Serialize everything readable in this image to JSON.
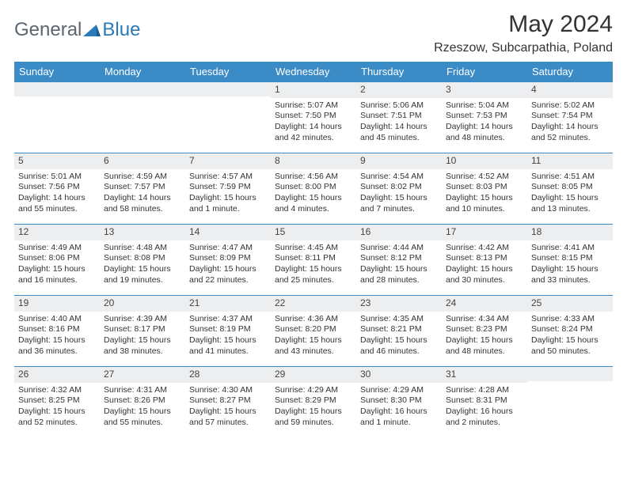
{
  "logo": {
    "part1": "General",
    "part2": "Blue"
  },
  "title": "May 2024",
  "location": "Rzeszow, Subcarpathia, Poland",
  "colors": {
    "header_bg": "#3b8bc7",
    "header_text": "#ffffff",
    "daynum_bg": "#eceeef",
    "row_border": "#3b8bc7",
    "logo_gray": "#5b6670",
    "logo_blue": "#2a7ab9",
    "text": "#333333",
    "background": "#ffffff"
  },
  "fonts": {
    "title_size": 30,
    "location_size": 16,
    "header_cell_size": 13,
    "daynum_size": 12,
    "body_size": 10.5
  },
  "day_headers": [
    "Sunday",
    "Monday",
    "Tuesday",
    "Wednesday",
    "Thursday",
    "Friday",
    "Saturday"
  ],
  "weeks": [
    [
      {
        "n": "",
        "sr": "",
        "ss": "",
        "dl": ""
      },
      {
        "n": "",
        "sr": "",
        "ss": "",
        "dl": ""
      },
      {
        "n": "",
        "sr": "",
        "ss": "",
        "dl": ""
      },
      {
        "n": "1",
        "sr": "Sunrise: 5:07 AM",
        "ss": "Sunset: 7:50 PM",
        "dl": "Daylight: 14 hours and 42 minutes."
      },
      {
        "n": "2",
        "sr": "Sunrise: 5:06 AM",
        "ss": "Sunset: 7:51 PM",
        "dl": "Daylight: 14 hours and 45 minutes."
      },
      {
        "n": "3",
        "sr": "Sunrise: 5:04 AM",
        "ss": "Sunset: 7:53 PM",
        "dl": "Daylight: 14 hours and 48 minutes."
      },
      {
        "n": "4",
        "sr": "Sunrise: 5:02 AM",
        "ss": "Sunset: 7:54 PM",
        "dl": "Daylight: 14 hours and 52 minutes."
      }
    ],
    [
      {
        "n": "5",
        "sr": "Sunrise: 5:01 AM",
        "ss": "Sunset: 7:56 PM",
        "dl": "Daylight: 14 hours and 55 minutes."
      },
      {
        "n": "6",
        "sr": "Sunrise: 4:59 AM",
        "ss": "Sunset: 7:57 PM",
        "dl": "Daylight: 14 hours and 58 minutes."
      },
      {
        "n": "7",
        "sr": "Sunrise: 4:57 AM",
        "ss": "Sunset: 7:59 PM",
        "dl": "Daylight: 15 hours and 1 minute."
      },
      {
        "n": "8",
        "sr": "Sunrise: 4:56 AM",
        "ss": "Sunset: 8:00 PM",
        "dl": "Daylight: 15 hours and 4 minutes."
      },
      {
        "n": "9",
        "sr": "Sunrise: 4:54 AM",
        "ss": "Sunset: 8:02 PM",
        "dl": "Daylight: 15 hours and 7 minutes."
      },
      {
        "n": "10",
        "sr": "Sunrise: 4:52 AM",
        "ss": "Sunset: 8:03 PM",
        "dl": "Daylight: 15 hours and 10 minutes."
      },
      {
        "n": "11",
        "sr": "Sunrise: 4:51 AM",
        "ss": "Sunset: 8:05 PM",
        "dl": "Daylight: 15 hours and 13 minutes."
      }
    ],
    [
      {
        "n": "12",
        "sr": "Sunrise: 4:49 AM",
        "ss": "Sunset: 8:06 PM",
        "dl": "Daylight: 15 hours and 16 minutes."
      },
      {
        "n": "13",
        "sr": "Sunrise: 4:48 AM",
        "ss": "Sunset: 8:08 PM",
        "dl": "Daylight: 15 hours and 19 minutes."
      },
      {
        "n": "14",
        "sr": "Sunrise: 4:47 AM",
        "ss": "Sunset: 8:09 PM",
        "dl": "Daylight: 15 hours and 22 minutes."
      },
      {
        "n": "15",
        "sr": "Sunrise: 4:45 AM",
        "ss": "Sunset: 8:11 PM",
        "dl": "Daylight: 15 hours and 25 minutes."
      },
      {
        "n": "16",
        "sr": "Sunrise: 4:44 AM",
        "ss": "Sunset: 8:12 PM",
        "dl": "Daylight: 15 hours and 28 minutes."
      },
      {
        "n": "17",
        "sr": "Sunrise: 4:42 AM",
        "ss": "Sunset: 8:13 PM",
        "dl": "Daylight: 15 hours and 30 minutes."
      },
      {
        "n": "18",
        "sr": "Sunrise: 4:41 AM",
        "ss": "Sunset: 8:15 PM",
        "dl": "Daylight: 15 hours and 33 minutes."
      }
    ],
    [
      {
        "n": "19",
        "sr": "Sunrise: 4:40 AM",
        "ss": "Sunset: 8:16 PM",
        "dl": "Daylight: 15 hours and 36 minutes."
      },
      {
        "n": "20",
        "sr": "Sunrise: 4:39 AM",
        "ss": "Sunset: 8:17 PM",
        "dl": "Daylight: 15 hours and 38 minutes."
      },
      {
        "n": "21",
        "sr": "Sunrise: 4:37 AM",
        "ss": "Sunset: 8:19 PM",
        "dl": "Daylight: 15 hours and 41 minutes."
      },
      {
        "n": "22",
        "sr": "Sunrise: 4:36 AM",
        "ss": "Sunset: 8:20 PM",
        "dl": "Daylight: 15 hours and 43 minutes."
      },
      {
        "n": "23",
        "sr": "Sunrise: 4:35 AM",
        "ss": "Sunset: 8:21 PM",
        "dl": "Daylight: 15 hours and 46 minutes."
      },
      {
        "n": "24",
        "sr": "Sunrise: 4:34 AM",
        "ss": "Sunset: 8:23 PM",
        "dl": "Daylight: 15 hours and 48 minutes."
      },
      {
        "n": "25",
        "sr": "Sunrise: 4:33 AM",
        "ss": "Sunset: 8:24 PM",
        "dl": "Daylight: 15 hours and 50 minutes."
      }
    ],
    [
      {
        "n": "26",
        "sr": "Sunrise: 4:32 AM",
        "ss": "Sunset: 8:25 PM",
        "dl": "Daylight: 15 hours and 52 minutes."
      },
      {
        "n": "27",
        "sr": "Sunrise: 4:31 AM",
        "ss": "Sunset: 8:26 PM",
        "dl": "Daylight: 15 hours and 55 minutes."
      },
      {
        "n": "28",
        "sr": "Sunrise: 4:30 AM",
        "ss": "Sunset: 8:27 PM",
        "dl": "Daylight: 15 hours and 57 minutes."
      },
      {
        "n": "29",
        "sr": "Sunrise: 4:29 AM",
        "ss": "Sunset: 8:29 PM",
        "dl": "Daylight: 15 hours and 59 minutes."
      },
      {
        "n": "30",
        "sr": "Sunrise: 4:29 AM",
        "ss": "Sunset: 8:30 PM",
        "dl": "Daylight: 16 hours and 1 minute."
      },
      {
        "n": "31",
        "sr": "Sunrise: 4:28 AM",
        "ss": "Sunset: 8:31 PM",
        "dl": "Daylight: 16 hours and 2 minutes."
      },
      {
        "n": "",
        "sr": "",
        "ss": "",
        "dl": ""
      }
    ]
  ]
}
